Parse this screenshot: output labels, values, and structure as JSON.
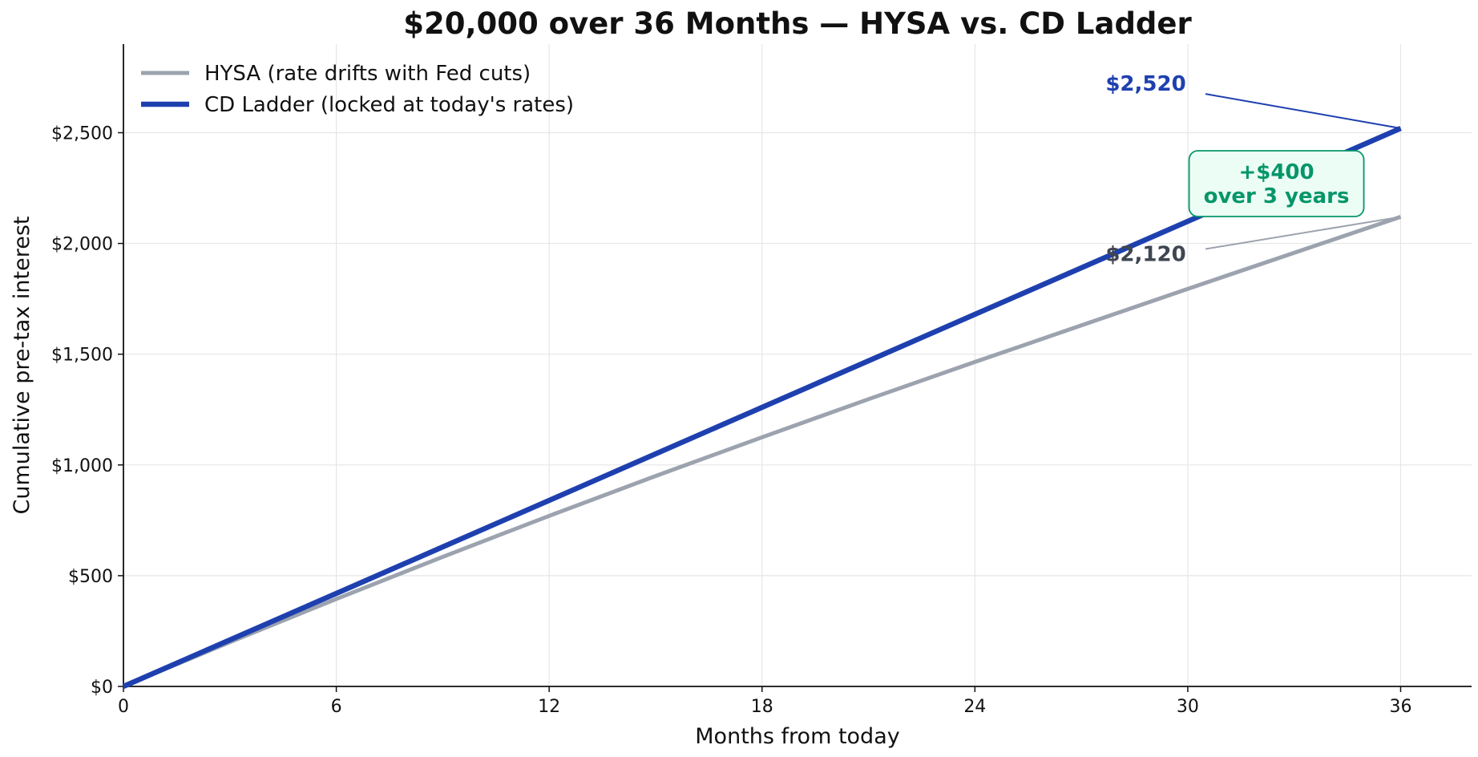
{
  "chart_data": {
    "type": "line",
    "title": "$20,000 over 36 Months — HYSA vs. CD Ladder",
    "xlabel": "Months from today",
    "ylabel": "Cumulative pre-tax interest",
    "xlim": [
      0,
      38
    ],
    "ylim": [
      0,
      2900
    ],
    "x_ticks": [
      0,
      6,
      12,
      18,
      24,
      30,
      36
    ],
    "y_ticks": [
      0,
      500,
      1000,
      1500,
      2000,
      2500
    ],
    "y_tick_labels": [
      "$0",
      "$500",
      "$1,000",
      "$1,500",
      "$2,000",
      "$2,500"
    ],
    "grid": true,
    "legend_position": "top-left",
    "x": [
      0,
      3,
      6,
      9,
      12,
      15,
      18,
      21,
      24,
      27,
      30,
      33,
      36
    ],
    "series": [
      {
        "name": "HYSA (rate drifts with Fed cuts)",
        "color": "#9ca3af",
        "values": [
          0,
          200,
          395,
          585,
          770,
          950,
          1125,
          1297,
          1465,
          1630,
          1795,
          1958,
          2120
        ],
        "end_label": "$2,120",
        "end_label_color": "#3f4651"
      },
      {
        "name": "CD Ladder (locked at today's rates)",
        "color": "#1e40af",
        "values": [
          0,
          210,
          420,
          630,
          840,
          1050,
          1260,
          1470,
          1680,
          1890,
          2100,
          2310,
          2520
        ],
        "end_label": "$2,520",
        "end_label_color": "#1e40af"
      }
    ],
    "annotation": {
      "line1": "+$400",
      "line2": "over 3 years",
      "text_color": "#059669",
      "fill_color": "#ecfdf5"
    }
  }
}
